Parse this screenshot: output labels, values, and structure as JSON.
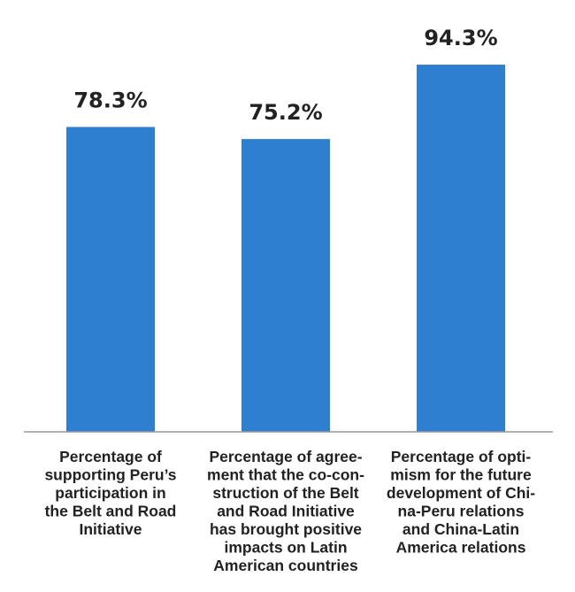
{
  "chart_data": {
    "type": "bar",
    "categories": [
      [
        "Percentage of",
        "supporting Peru’s",
        "participation in",
        "the Belt and Road",
        "Initiative"
      ],
      [
        "Percentage of agree-",
        "ment that the co-con-",
        "struction of the Belt",
        "and Road Initiative",
        "has brought positive",
        "impacts on Latin",
        "American countries"
      ],
      [
        "Percentage of opti-",
        "mism for the future",
        "development of Chi-",
        "na-Peru relations",
        "and China-Latin",
        "America relations"
      ]
    ],
    "values": [
      78.3,
      75.2,
      94.3
    ],
    "value_labels": [
      "78.3%",
      "75.2%",
      "94.3%"
    ],
    "title": "",
    "xlabel": "",
    "ylabel": "",
    "ylim": [
      0,
      100
    ],
    "grid": false,
    "legend": "none",
    "bar_color": "#2F7FD1",
    "axis_color": "#999999"
  }
}
